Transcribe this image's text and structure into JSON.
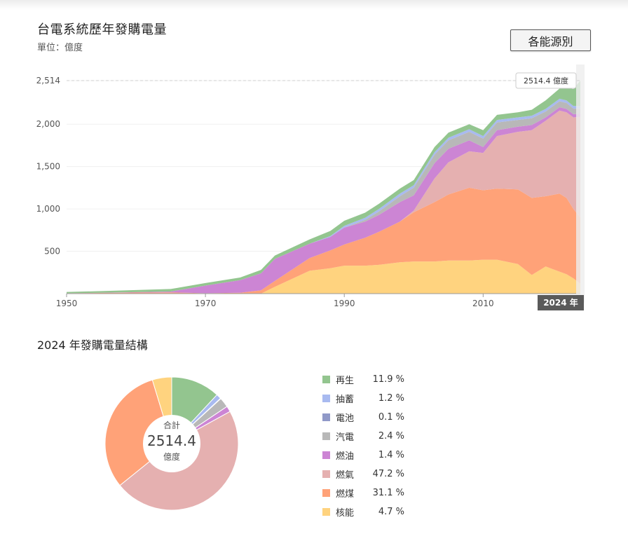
{
  "header": {
    "title": "台電系統歷年發購電量",
    "unit": "單位：億度",
    "source_button": "各能源別"
  },
  "tooltip": {
    "value": "2514.4 億度",
    "year_badge": "2024 年"
  },
  "pie_header": {
    "title": "2024 年發購電量結構"
  },
  "pie_center": {
    "top": "合計",
    "value": "2514.4",
    "bottom": "億度"
  },
  "colors": {
    "renewable": "#93c58f",
    "pumped": "#a8baf0",
    "battery": "#9099c8",
    "cogen": "#b8b8b8",
    "oil": "#cc85d4",
    "gas": "#e5b0b0",
    "coal": "#ffa278",
    "nuclear": "#ffd37f"
  },
  "chart_data": [
    {
      "type": "area",
      "title": "台電系統歷年發購電量",
      "ylabel": "單位：億度",
      "ylim": [
        0,
        2514.4
      ],
      "yticks": [
        500,
        1000,
        1500,
        2000,
        2514
      ],
      "ytick_labels": [
        "500",
        "1,000",
        "1,500",
        "2,000",
        "2,514"
      ],
      "xlim": [
        1950,
        2024
      ],
      "xticks": [
        1950,
        1970,
        1990,
        2010
      ],
      "xtick_labels": [
        "1950",
        "1970",
        "1990",
        "2010"
      ],
      "x": [
        1950,
        1955,
        1960,
        1965,
        1970,
        1975,
        1978,
        1980,
        1985,
        1988,
        1990,
        1993,
        1995,
        1998,
        2000,
        2003,
        2005,
        2008,
        2010,
        2012,
        2015,
        2017,
        2019,
        2021,
        2022,
        2023,
        2024
      ],
      "stacked": true,
      "series": [
        {
          "name": "核能",
          "key": "nuclear",
          "values": [
            0,
            0,
            0,
            0,
            0,
            0,
            0,
            80,
            270,
            300,
            330,
            330,
            340,
            370,
            380,
            380,
            390,
            390,
            400,
            400,
            350,
            220,
            320,
            260,
            230,
            180,
            118
          ]
        },
        {
          "name": "燃煤",
          "key": "coal",
          "values": [
            5,
            8,
            12,
            15,
            5,
            10,
            40,
            70,
            150,
            210,
            250,
            330,
            390,
            480,
            580,
            700,
            780,
            860,
            820,
            840,
            880,
            910,
            830,
            920,
            900,
            820,
            782
          ]
        },
        {
          "name": "燃氣",
          "key": "gas",
          "values": [
            0,
            0,
            0,
            0,
            0,
            0,
            0,
            0,
            0,
            0,
            0,
            0,
            0,
            0,
            20,
            280,
            380,
            430,
            440,
            620,
            680,
            800,
            890,
            980,
            1010,
            1080,
            1187
          ]
        },
        {
          "name": "燃油",
          "key": "oil",
          "values": [
            0,
            2,
            5,
            10,
            90,
            150,
            200,
            260,
            170,
            160,
            200,
            190,
            200,
            230,
            180,
            180,
            160,
            130,
            70,
            70,
            60,
            60,
            40,
            40,
            40,
            38,
            35
          ]
        },
        {
          "name": "汽電",
          "key": "cogen",
          "values": [
            0,
            0,
            0,
            0,
            0,
            0,
            0,
            0,
            0,
            0,
            0,
            20,
            40,
            70,
            90,
            100,
            100,
            100,
            100,
            90,
            80,
            80,
            70,
            70,
            70,
            65,
            60
          ]
        },
        {
          "name": "電池",
          "key": "battery",
          "values": [
            0,
            0,
            0,
            0,
            0,
            0,
            0,
            0,
            0,
            0,
            0,
            0,
            0,
            0,
            0,
            0,
            0,
            0,
            0,
            0,
            0,
            0,
            0,
            0,
            1,
            2,
            3
          ]
        },
        {
          "name": "抽蓄",
          "key": "pumped",
          "values": [
            0,
            0,
            0,
            0,
            0,
            0,
            0,
            0,
            0,
            10,
            20,
            25,
            30,
            30,
            30,
            30,
            30,
            30,
            30,
            30,
            30,
            30,
            30,
            30,
            30,
            30,
            30
          ]
        },
        {
          "name": "再生",
          "key": "renewable",
          "values": [
            15,
            20,
            25,
            30,
            30,
            30,
            40,
            40,
            50,
            60,
            60,
            60,
            60,
            60,
            60,
            60,
            60,
            60,
            70,
            60,
            60,
            70,
            100,
            120,
            150,
            200,
            299
          ]
        }
      ]
    },
    {
      "type": "pie",
      "title": "2024 年發購電量結構",
      "total": 2514.4,
      "slices": [
        {
          "name": "再生",
          "key": "renewable",
          "value": 11.9,
          "label": "11.9 %"
        },
        {
          "name": "抽蓄",
          "key": "pumped",
          "value": 1.2,
          "label": "1.2 %"
        },
        {
          "name": "電池",
          "key": "battery",
          "value": 0.1,
          "label": "0.1 %"
        },
        {
          "name": "汽電",
          "key": "cogen",
          "value": 2.4,
          "label": "2.4 %"
        },
        {
          "name": "燃油",
          "key": "oil",
          "value": 1.4,
          "label": "1.4 %"
        },
        {
          "name": "燃氣",
          "key": "gas",
          "value": 47.2,
          "label": "47.2 %"
        },
        {
          "name": "燃煤",
          "key": "coal",
          "value": 31.1,
          "label": "31.1 %"
        },
        {
          "name": "核能",
          "key": "nuclear",
          "value": 4.7,
          "label": "4.7 %"
        }
      ]
    }
  ]
}
